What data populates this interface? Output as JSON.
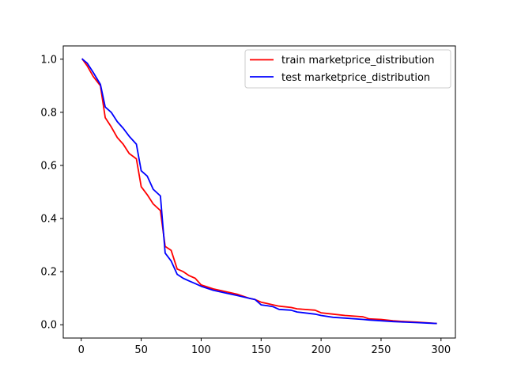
{
  "chart_data": {
    "type": "line",
    "title": "",
    "xlabel": "",
    "ylabel": "",
    "xlim": [
      -15,
      312
    ],
    "ylim": [
      -0.05,
      1.05
    ],
    "xticks": [
      0,
      50,
      100,
      150,
      200,
      250,
      300
    ],
    "yticks": [
      0.0,
      0.2,
      0.4,
      0.6,
      0.8,
      1.0
    ],
    "xtick_labels": [
      "0",
      "50",
      "100",
      "150",
      "200",
      "250",
      "300"
    ],
    "ytick_labels": [
      "0.0",
      "0.2",
      "0.4",
      "0.6",
      "0.8",
      "1.0"
    ],
    "grid": false,
    "legend_position": "upper right",
    "series": [
      {
        "name": "train marketprice_distribution",
        "color": "#ff0000",
        "points": [
          [
            1,
            1.0
          ],
          [
            5,
            0.975
          ],
          [
            10,
            0.935
          ],
          [
            16,
            0.9
          ],
          [
            20,
            0.78
          ],
          [
            25,
            0.745
          ],
          [
            30,
            0.705
          ],
          [
            35,
            0.68
          ],
          [
            40,
            0.645
          ],
          [
            46,
            0.625
          ],
          [
            50,
            0.52
          ],
          [
            55,
            0.49
          ],
          [
            60,
            0.455
          ],
          [
            66,
            0.43
          ],
          [
            70,
            0.295
          ],
          [
            75,
            0.28
          ],
          [
            80,
            0.21
          ],
          [
            85,
            0.2
          ],
          [
            90,
            0.185
          ],
          [
            95,
            0.175
          ],
          [
            100,
            0.15
          ],
          [
            110,
            0.135
          ],
          [
            120,
            0.125
          ],
          [
            130,
            0.115
          ],
          [
            140,
            0.1
          ],
          [
            145,
            0.095
          ],
          [
            150,
            0.085
          ],
          [
            155,
            0.08
          ],
          [
            160,
            0.075
          ],
          [
            165,
            0.07
          ],
          [
            175,
            0.065
          ],
          [
            180,
            0.06
          ],
          [
            195,
            0.055
          ],
          [
            200,
            0.045
          ],
          [
            210,
            0.04
          ],
          [
            220,
            0.035
          ],
          [
            235,
            0.03
          ],
          [
            240,
            0.022
          ],
          [
            250,
            0.02
          ],
          [
            260,
            0.015
          ],
          [
            270,
            0.012
          ],
          [
            280,
            0.01
          ],
          [
            290,
            0.007
          ],
          [
            296,
            0.005
          ]
        ]
      },
      {
        "name": "test marketprice_distribution",
        "color": "#0000ff",
        "points": [
          [
            1,
            1.0
          ],
          [
            5,
            0.985
          ],
          [
            10,
            0.95
          ],
          [
            16,
            0.905
          ],
          [
            20,
            0.82
          ],
          [
            25,
            0.8
          ],
          [
            30,
            0.765
          ],
          [
            35,
            0.74
          ],
          [
            40,
            0.71
          ],
          [
            46,
            0.68
          ],
          [
            50,
            0.58
          ],
          [
            55,
            0.56
          ],
          [
            60,
            0.51
          ],
          [
            66,
            0.485
          ],
          [
            70,
            0.27
          ],
          [
            75,
            0.24
          ],
          [
            80,
            0.19
          ],
          [
            85,
            0.175
          ],
          [
            90,
            0.165
          ],
          [
            95,
            0.155
          ],
          [
            100,
            0.145
          ],
          [
            110,
            0.13
          ],
          [
            120,
            0.12
          ],
          [
            130,
            0.11
          ],
          [
            140,
            0.1
          ],
          [
            145,
            0.095
          ],
          [
            150,
            0.075
          ],
          [
            155,
            0.072
          ],
          [
            160,
            0.068
          ],
          [
            165,
            0.058
          ],
          [
            175,
            0.055
          ],
          [
            180,
            0.048
          ],
          [
            195,
            0.04
          ],
          [
            200,
            0.035
          ],
          [
            210,
            0.028
          ],
          [
            220,
            0.025
          ],
          [
            235,
            0.02
          ],
          [
            240,
            0.018
          ],
          [
            250,
            0.015
          ],
          [
            260,
            0.012
          ],
          [
            270,
            0.01
          ],
          [
            280,
            0.008
          ],
          [
            290,
            0.006
          ],
          [
            296,
            0.005
          ]
        ]
      }
    ]
  }
}
